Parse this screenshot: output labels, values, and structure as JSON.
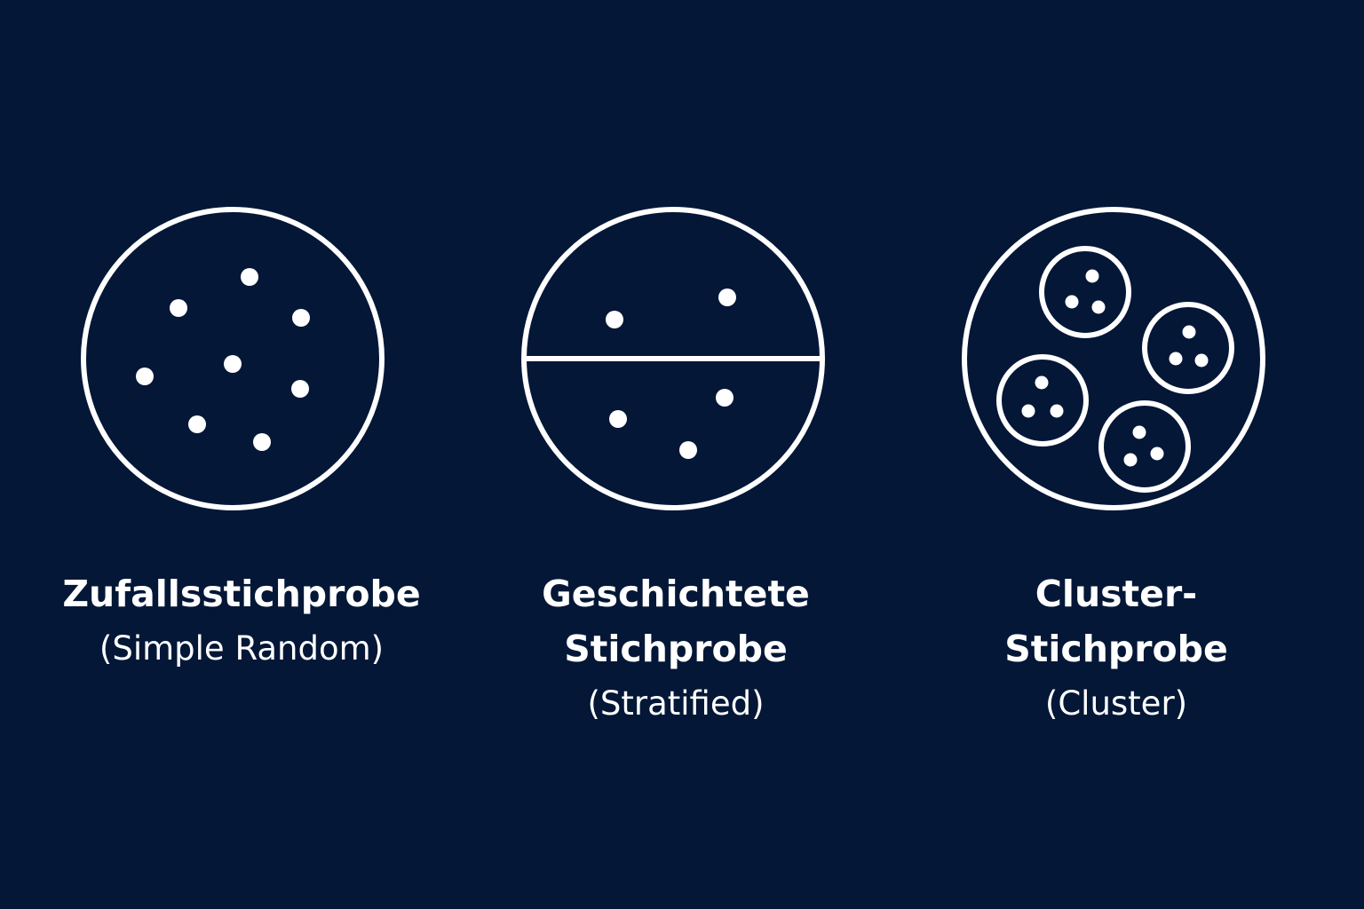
{
  "diagrams": {
    "simple_random": {
      "title": "Zufallsstichprobe",
      "subtitle": "(Simple Random)"
    },
    "stratified": {
      "title": "Geschichtete\nStichprobe",
      "subtitle": "(Stratified)"
    },
    "cluster": {
      "title": "Cluster-\nStichprobe",
      "subtitle": "(Cluster)"
    }
  },
  "colors": {
    "background": "#041737",
    "foreground": "#ffffff"
  }
}
